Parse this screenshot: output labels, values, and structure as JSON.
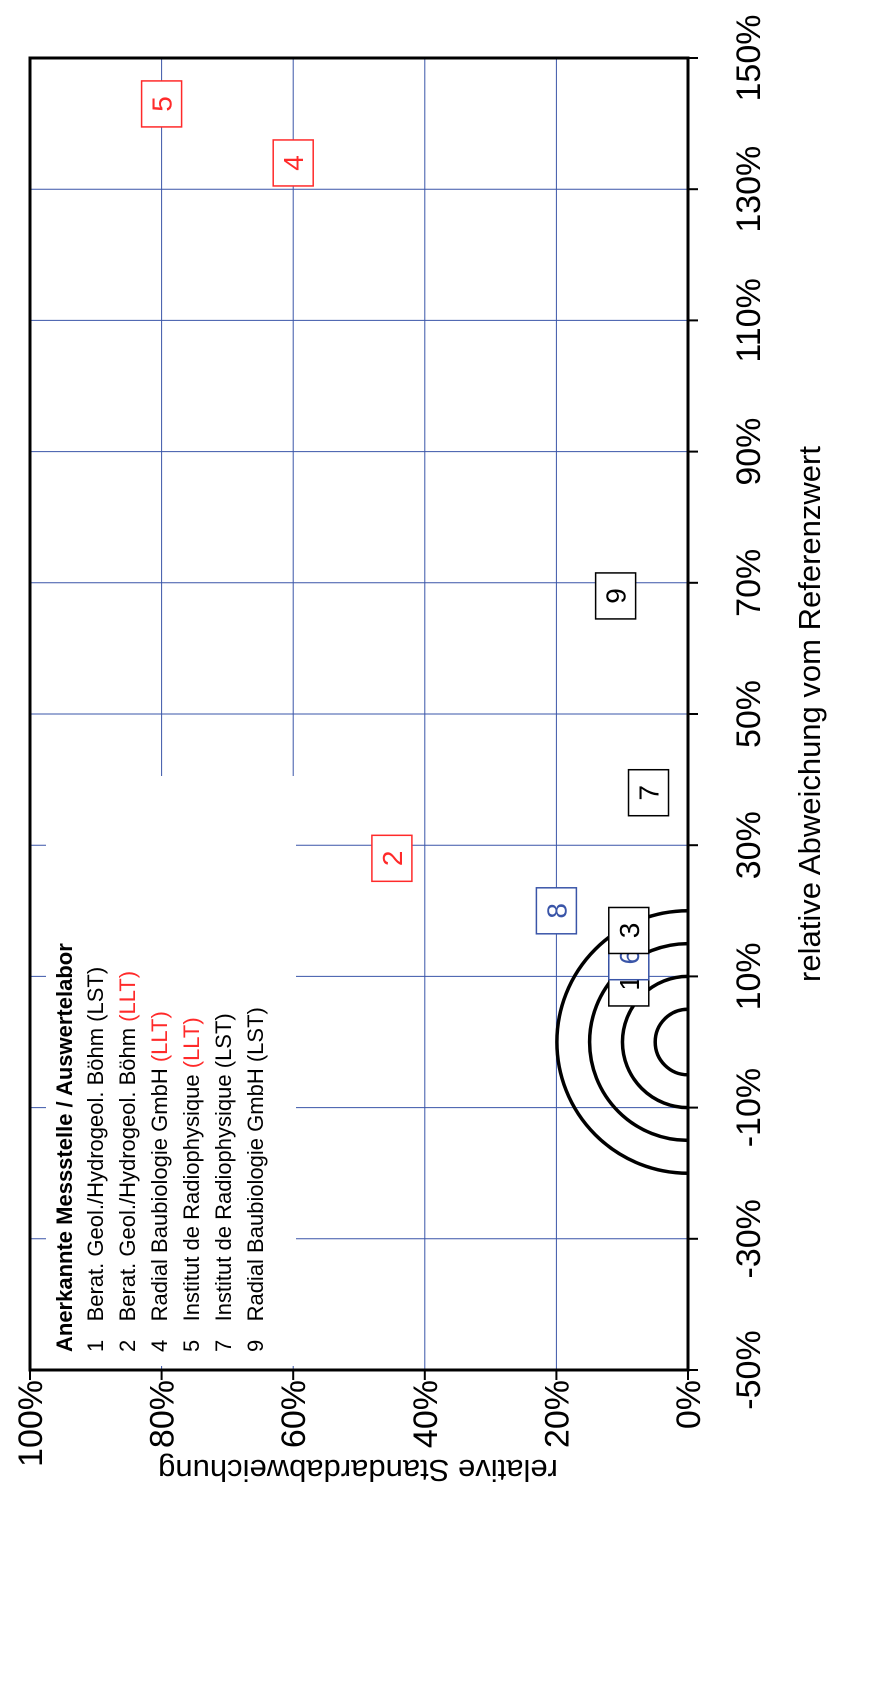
{
  "chart_data": {
    "type": "scatter",
    "xlabel": "relative Abweichung vom Referenzwert",
    "ylabel": "relative Standardabweichung",
    "xlim": [
      -50,
      150
    ],
    "ylim": [
      0,
      100
    ],
    "x_ticks": [
      "-50%",
      "-30%",
      "-10%",
      "10%",
      "30%",
      "50%",
      "70%",
      "90%",
      "110%",
      "130%",
      "150%"
    ],
    "y_ticks": [
      "0%",
      "20%",
      "40%",
      "60%",
      "80%",
      "100%"
    ],
    "grid": true,
    "target_circles_radius": [
      5,
      10,
      15,
      20
    ],
    "colors": {
      "LST": "#000000",
      "LLT": "#ff2a2a",
      "blue": "#3a55a8"
    },
    "points": [
      {
        "label": "1",
        "x": 9,
        "y": 9,
        "color": "#000000"
      },
      {
        "label": "6",
        "x": 13,
        "y": 9,
        "color": "#3a55a8"
      },
      {
        "label": "3",
        "x": 17,
        "y": 9,
        "color": "#000000"
      },
      {
        "label": "8",
        "x": 20,
        "y": 20,
        "color": "#3a55a8"
      },
      {
        "label": "2",
        "x": 28,
        "y": 45,
        "color": "#ff2a2a"
      },
      {
        "label": "7",
        "x": 38,
        "y": 6,
        "color": "#000000"
      },
      {
        "label": "9",
        "x": 68,
        "y": 11,
        "color": "#000000"
      },
      {
        "label": "4",
        "x": 134,
        "y": 60,
        "color": "#ff2a2a"
      },
      {
        "label": "5",
        "x": 143,
        "y": 80,
        "color": "#ff2a2a"
      }
    ]
  },
  "legend": {
    "title": "Anerkannte Messstelle / Auswertelabor",
    "items": [
      {
        "num": "1",
        "text": "Berat. Geol./Hydrogeol. Böhm",
        "tag": "(LST)",
        "llt": false
      },
      {
        "num": "2",
        "text": "Berat. Geol./Hydrogeol. Böhm",
        "tag": "(LLT)",
        "llt": true
      },
      {
        "num": "4",
        "text": "Radial Baubiologie GmbH",
        "tag": "(LLT)",
        "llt": true
      },
      {
        "num": "5",
        "text": "Institut de Radiophysique",
        "tag": "(LLT)",
        "llt": true
      },
      {
        "num": "7",
        "text": "Institut de Radiophysique",
        "tag": "(LST)",
        "llt": false
      },
      {
        "num": "9",
        "text": "Radial Baubiologie GmbH",
        "tag": "(LST)",
        "llt": false
      }
    ]
  }
}
